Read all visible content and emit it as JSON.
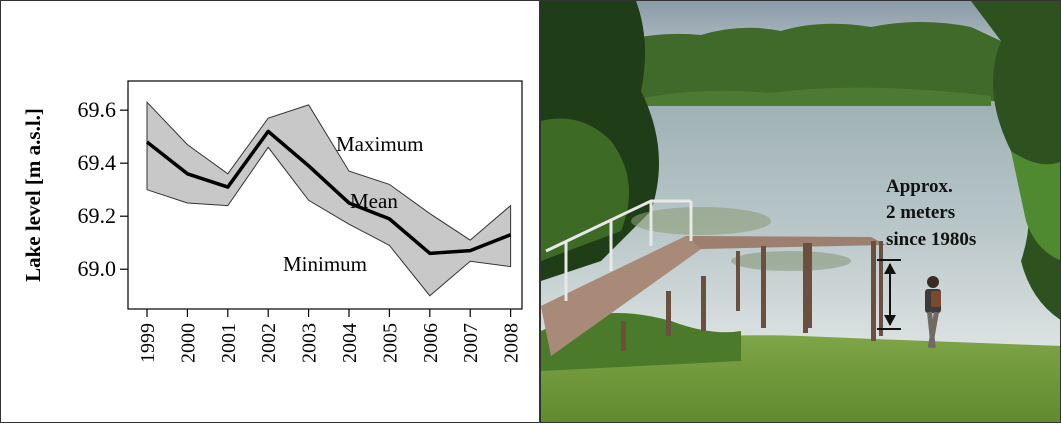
{
  "chart_data": {
    "type": "line",
    "ylabel": "Lake level [m a.s.l.]",
    "xlabel": "",
    "x": [
      "1999",
      "2000",
      "2001",
      "2002",
      "2003",
      "2004",
      "2005",
      "2006",
      "2007",
      "2008"
    ],
    "series": [
      {
        "name": "Maximum",
        "values": [
          69.63,
          69.47,
          69.36,
          69.57,
          69.62,
          69.37,
          69.32,
          69.21,
          69.11,
          69.24
        ]
      },
      {
        "name": "Mean",
        "values": [
          69.48,
          69.36,
          69.31,
          69.52,
          69.39,
          69.25,
          69.19,
          69.06,
          69.07,
          69.13
        ]
      },
      {
        "name": "Minimum",
        "values": [
          69.3,
          69.25,
          69.24,
          69.46,
          69.26,
          69.17,
          69.09,
          68.9,
          69.03,
          69.01
        ]
      }
    ],
    "ylim": [
      68.85,
      69.71
    ],
    "yticks": [
      "69.0",
      "69.2",
      "69.4",
      "69.6"
    ],
    "ytick_values": [
      69.0,
      69.2,
      69.4,
      69.6
    ],
    "band_color": "#c8c8c8",
    "line_color": "#000000",
    "grid": false
  },
  "photo": {
    "annotation_line1": "Approx.",
    "annotation_line2": "2 meters",
    "annotation_line3": "since 1980s"
  }
}
